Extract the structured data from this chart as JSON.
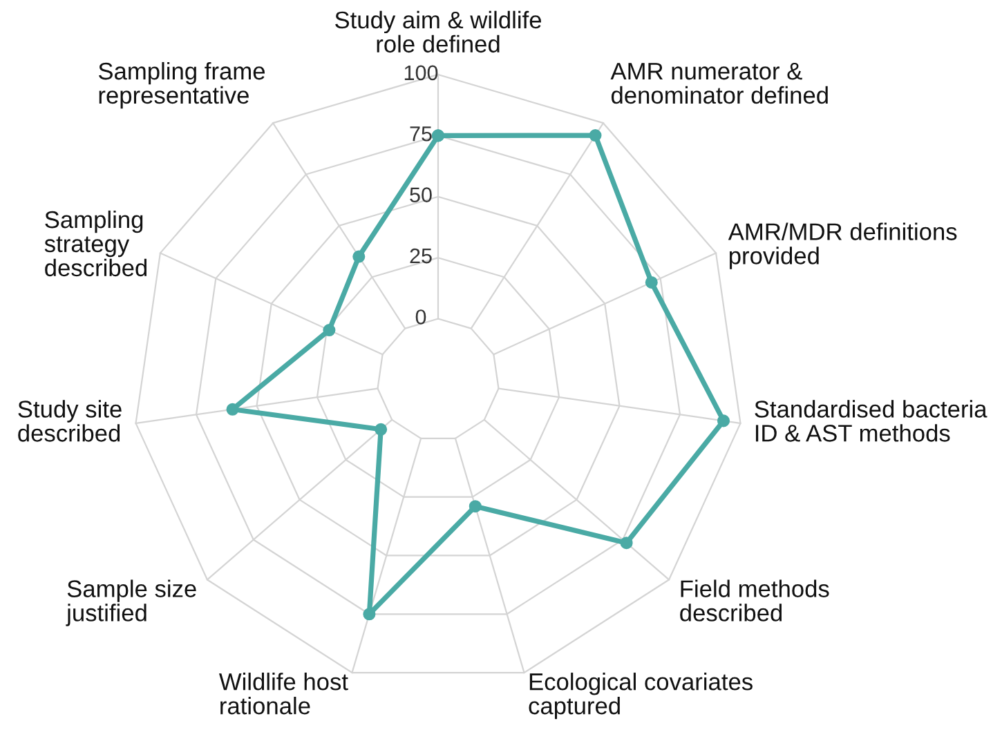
{
  "chart_data": {
    "type": "radar",
    "categories": [
      "Study aim & wildlife\nrole defined",
      "AMR numerator &\ndenominator defined",
      "AMR/MDR definitions\nprovided",
      "Standardised bacteria\nID & AST methods",
      "Field methods\ndescribed",
      "Ecological covariates\ncaptured",
      "Wildlife host\nrationale",
      "Sample size\njustified",
      "Study site\ndescribed",
      "Sampling\nstrategy\ndescribed",
      "Sampling frame\nrepresentative"
    ],
    "series": [
      {
        "color": "#4aaaa5",
        "values": [
          75,
          94,
          71,
          93,
          77,
          29,
          75,
          6,
          60,
          24,
          35
        ]
      }
    ],
    "ylim": [
      -25,
      100
    ],
    "yticks": [
      0,
      25,
      50,
      75,
      100
    ],
    "grid": true,
    "marker": "circle",
    "line_style": "solid"
  }
}
